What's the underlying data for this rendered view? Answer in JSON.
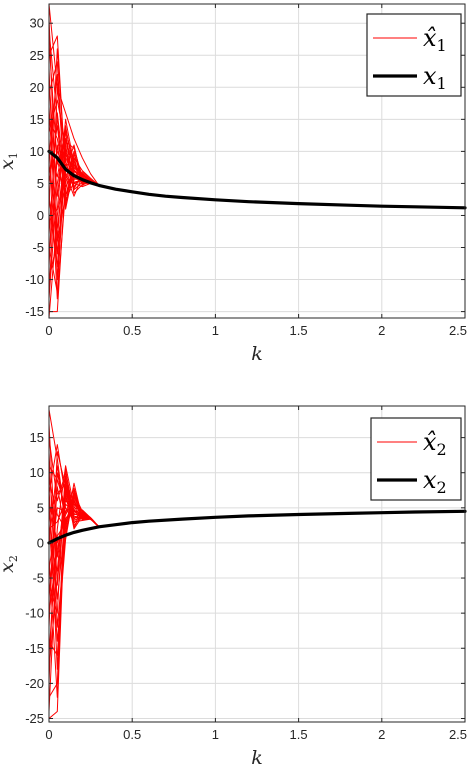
{
  "chart_data": [
    {
      "type": "line",
      "xlabel": "k",
      "ylabel": "x",
      "ylabel_sub": "1",
      "xlim": [
        0,
        2.5
      ],
      "ylim": [
        -16,
        33
      ],
      "xticks": [
        0,
        0.5,
        1,
        1.5,
        2,
        2.5
      ],
      "xtick_labels": [
        "0",
        "0.5",
        "1",
        "1.5",
        "2",
        "2.5"
      ],
      "yticks": [
        -15,
        -10,
        -5,
        0,
        5,
        10,
        15,
        20,
        25,
        30
      ],
      "ytick_labels": [
        "-15",
        "-10",
        "-5",
        "0",
        "5",
        "10",
        "15",
        "20",
        "25",
        "30"
      ],
      "grid": true,
      "legend_position": "top-right",
      "legend": [
        {
          "label": "x̂",
          "sub": "1",
          "color": "#ff0000"
        },
        {
          "label": "x",
          "sub": "1",
          "color": "#000000"
        }
      ],
      "true_trajectory": {
        "name": "x1",
        "color": "#000000",
        "x": [
          0,
          0.05,
          0.1,
          0.15,
          0.2,
          0.25,
          0.3,
          0.4,
          0.5,
          0.6,
          0.7,
          0.8,
          1.0,
          1.2,
          1.5,
          1.8,
          2.0,
          2.2,
          2.5
        ],
        "y": [
          10.0,
          9.0,
          7.2,
          6.2,
          5.6,
          5.1,
          4.7,
          4.1,
          3.7,
          3.3,
          3.0,
          2.8,
          2.45,
          2.15,
          1.85,
          1.6,
          1.45,
          1.35,
          1.2
        ]
      },
      "estimate_color": "#ff0000",
      "estimate_start_x": 0,
      "estimate_knot_x": [
        0.05,
        0.1,
        0.15,
        0.2,
        0.25
      ],
      "estimate_converge_x": 0.3,
      "estimates_initial": [
        33,
        31,
        29,
        27,
        25,
        23,
        21,
        19,
        17,
        15,
        13,
        12,
        11,
        9,
        8,
        7,
        5,
        3,
        1,
        -1,
        -3,
        -5,
        -7,
        -8,
        -10,
        -12,
        -13,
        -15,
        -16
      ],
      "estimates_at_knot": [
        [
          20,
          16,
          12,
          9,
          6.5
        ],
        [
          -4,
          3,
          7,
          5.8,
          5.4
        ],
        [
          15,
          2,
          8,
          6.4,
          5.6
        ],
        [
          8,
          12,
          5,
          4.5,
          5.0
        ],
        [
          28,
          6,
          9,
          7,
          5.8
        ],
        [
          -10,
          10,
          4,
          5.2,
          5.2
        ],
        [
          3,
          14,
          6.5,
          5.7,
          5.1
        ],
        [
          24,
          1,
          7.5,
          6.0,
          5.3
        ],
        [
          -6,
          8,
          5.5,
          6.6,
          5.4
        ],
        [
          12,
          5,
          10,
          5.0,
          5.0
        ],
        [
          18,
          11,
          3.5,
          4.8,
          5.2
        ],
        [
          -13,
          4,
          9.5,
          6.2,
          5.5
        ],
        [
          6,
          13,
          4.5,
          5.9,
          5.0
        ],
        [
          22,
          3,
          8.5,
          5.4,
          5.3
        ],
        [
          -2,
          9,
          6,
          6.8,
          5.6
        ],
        [
          10,
          7,
          11,
          5.1,
          5.1
        ],
        [
          14,
          2.5,
          5.2,
          5.5,
          5.2
        ],
        [
          -8,
          12,
          7.2,
          4.9,
          5.4
        ],
        [
          26,
          6.5,
          3,
          6.1,
          5.0
        ],
        [
          1,
          15,
          8,
          5.6,
          5.3
        ],
        [
          16,
          4.5,
          6.8,
          6.4,
          5.2
        ],
        [
          -12,
          10.5,
          5.8,
          5.3,
          5.1
        ],
        [
          9,
          1.5,
          9,
          4.7,
          5.5
        ],
        [
          20,
          8.5,
          4.2,
          6.5,
          5.3
        ],
        [
          -4,
          13.5,
          7.8,
          5.8,
          5.0
        ],
        [
          11,
          3.2,
          6.2,
          5.2,
          5.4
        ],
        [
          5,
          11.5,
          10.5,
          6.0,
          5.2
        ],
        [
          -15,
          6,
          5,
          5.5,
          5.1
        ],
        [
          0,
          9.5,
          7,
          6.3,
          5.3
        ]
      ]
    },
    {
      "type": "line",
      "xlabel": "k",
      "ylabel": "x",
      "ylabel_sub": "2",
      "xlim": [
        0,
        2.5
      ],
      "ylim": [
        -25.5,
        19.5
      ],
      "xticks": [
        0,
        0.5,
        1,
        1.5,
        2,
        2.5
      ],
      "xtick_labels": [
        "0",
        "0.5",
        "1",
        "1.5",
        "2",
        "2.5"
      ],
      "yticks": [
        -25,
        -20,
        -15,
        -10,
        -5,
        0,
        5,
        10,
        15
      ],
      "ytick_labels": [
        "-25",
        "-20",
        "-15",
        "-10",
        "-5",
        "0",
        "5",
        "10",
        "15"
      ],
      "grid": true,
      "legend_position": "top-right",
      "legend": [
        {
          "label": "x̂",
          "sub": "2",
          "color": "#ff0000"
        },
        {
          "label": "x",
          "sub": "2",
          "color": "#000000"
        }
      ],
      "true_trajectory": {
        "name": "x2",
        "color": "#000000",
        "x": [
          0,
          0.05,
          0.1,
          0.15,
          0.2,
          0.3,
          0.4,
          0.5,
          0.6,
          0.8,
          1.0,
          1.2,
          1.5,
          1.8,
          2.0,
          2.2,
          2.5
        ],
        "y": [
          0.0,
          0.6,
          1.1,
          1.5,
          1.8,
          2.3,
          2.6,
          2.9,
          3.1,
          3.4,
          3.65,
          3.85,
          4.05,
          4.2,
          4.3,
          4.4,
          4.5
        ],
        "start_y": 0
      },
      "estimate_color": "#ff0000",
      "estimate_start_x": 0,
      "estimate_knot_x": [
        0.05,
        0.1,
        0.15,
        0.2,
        0.25
      ],
      "estimate_converge_x": 0.3,
      "estimates_initial": [
        19,
        17,
        15,
        13,
        11,
        10,
        9,
        8,
        7,
        6,
        5,
        4,
        3,
        2,
        1,
        0,
        -2,
        -4,
        -6,
        -8,
        -10,
        -12,
        -14,
        -16,
        -18,
        -20,
        -22,
        -24,
        -25
      ],
      "estimates_at_knot": [
        [
          12,
          3,
          6,
          4.2,
          3.5
        ],
        [
          -6,
          8,
          2,
          3.8,
          3.4
        ],
        [
          6,
          10,
          4.5,
          3.6,
          3.5
        ],
        [
          -12,
          1,
          7,
          4.5,
          3.6
        ],
        [
          9,
          5,
          3,
          3.2,
          3.4
        ],
        [
          -2,
          7,
          5.5,
          4.0,
          3.5
        ],
        [
          4,
          2,
          8.5,
          3.5,
          3.4
        ],
        [
          -18,
          9,
          4,
          4.3,
          3.6
        ],
        [
          14,
          6.5,
          2.5,
          3.9,
          3.5
        ],
        [
          0,
          4,
          6.2,
          3.4,
          3.4
        ],
        [
          -8,
          3.5,
          5,
          4.6,
          3.5
        ],
        [
          7,
          8.5,
          3.6,
          3.7,
          3.6
        ],
        [
          -14,
          0.5,
          7.5,
          4.1,
          3.4
        ],
        [
          3,
          6,
          4.8,
          3.3,
          3.5
        ],
        [
          -4,
          9.5,
          2.2,
          4.4,
          3.5
        ],
        [
          11,
          2.5,
          6.8,
          3.8,
          3.4
        ],
        [
          -22,
          7.5,
          4.2,
          3.6,
          3.6
        ],
        [
          5,
          4.5,
          5.6,
          4.2,
          3.5
        ],
        [
          -10,
          10.5,
          3.2,
          3.9,
          3.4
        ],
        [
          8,
          1.5,
          7.2,
          3.5,
          3.5
        ],
        [
          -1,
          5.5,
          4.4,
          4.7,
          3.6
        ],
        [
          13,
          8,
          3.8,
          3.6,
          3.4
        ],
        [
          -16,
          3,
          6.5,
          4.0,
          3.5
        ],
        [
          2,
          11,
          5.2,
          3.4,
          3.5
        ],
        [
          -5,
          6.8,
          2.8,
          4.3,
          3.4
        ],
        [
          10,
          4.2,
          7.8,
          3.7,
          3.6
        ],
        [
          -20,
          9.2,
          4.6,
          4.1,
          3.5
        ],
        [
          1,
          2.8,
          5.9,
          3.5,
          3.4
        ],
        [
          -24,
          7.2,
          3.4,
          4.4,
          3.5
        ]
      ]
    }
  ]
}
